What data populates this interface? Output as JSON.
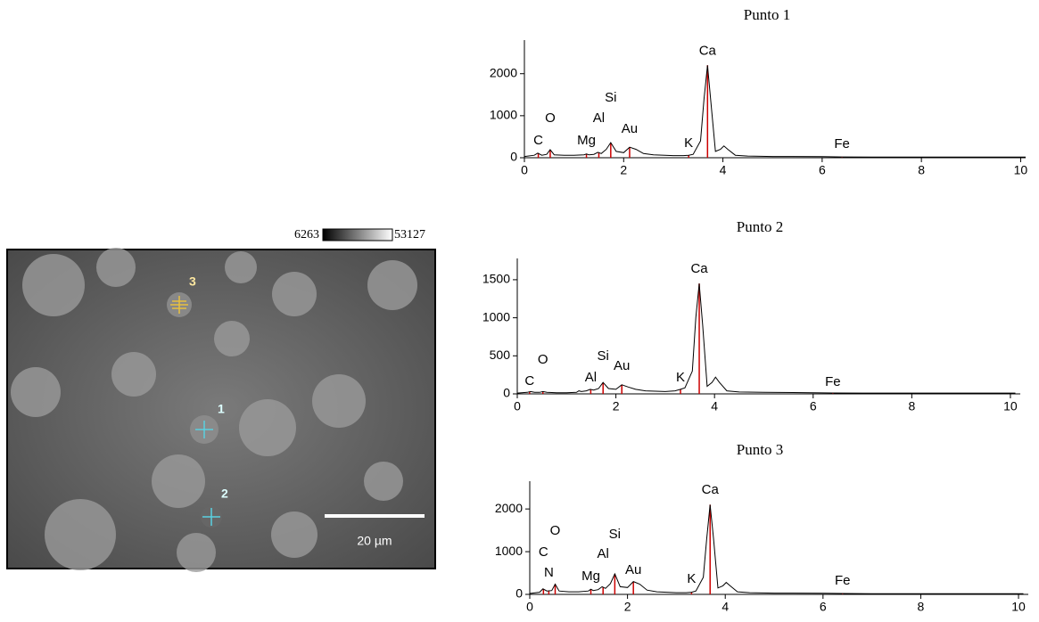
{
  "image": {
    "colorbar_min": 6263,
    "colorbar_max": 53127,
    "points": [
      "1",
      "2",
      "3"
    ],
    "scale_bar": "20 µm"
  },
  "chart_data": [
    {
      "type": "line",
      "title": "Punto 1",
      "color": "#000000",
      "marker_color": "#cc0000",
      "x": [
        0,
        0.2,
        0.27,
        0.35,
        0.45,
        0.52,
        0.6,
        0.8,
        1.0,
        1.2,
        1.25,
        1.3,
        1.4,
        1.48,
        1.55,
        1.65,
        1.74,
        1.85,
        2.0,
        2.12,
        2.25,
        2.4,
        2.6,
        3.0,
        3.2,
        3.31,
        3.4,
        3.55,
        3.62,
        3.69,
        3.76,
        3.85,
        3.95,
        4.02,
        4.1,
        4.25,
        4.5,
        5,
        6,
        6.4,
        7,
        8,
        9,
        10,
        10.1
      ],
      "values": [
        30,
        60,
        110,
        60,
        80,
        190,
        70,
        60,
        60,
        70,
        90,
        70,
        80,
        130,
        100,
        200,
        360,
        150,
        120,
        250,
        200,
        100,
        70,
        50,
        50,
        60,
        80,
        400,
        1400,
        2200,
        1300,
        150,
        200,
        280,
        200,
        60,
        40,
        30,
        25,
        20,
        15,
        15,
        15,
        15,
        15
      ],
      "xlim": [
        0,
        10.1
      ],
      "xticks": [
        0,
        2,
        4,
        6,
        8,
        10
      ],
      "ylim": [
        0,
        2800
      ],
      "yticks": [
        0,
        1000,
        2000
      ],
      "annotations": [
        {
          "text": "C",
          "x": 0.28,
          "y": 400
        },
        {
          "text": "O",
          "x": 0.52,
          "y": 935
        },
        {
          "text": "Mg",
          "x": 1.25,
          "y": 400
        },
        {
          "text": "Al",
          "x": 1.5,
          "y": 935
        },
        {
          "text": "Si",
          "x": 1.74,
          "y": 1425
        },
        {
          "text": "Au",
          "x": 2.12,
          "y": 680
        },
        {
          "text": "K",
          "x": 3.31,
          "y": 340
        },
        {
          "text": "Ca",
          "x": 3.69,
          "y": 2530
        },
        {
          "text": "Fe",
          "x": 6.4,
          "y": 320
        }
      ]
    },
    {
      "type": "line",
      "title": "Punto 2",
      "color": "#000000",
      "marker_color": "#cc0000",
      "x": [
        0,
        0.2,
        0.27,
        0.35,
        0.45,
        0.52,
        0.6,
        0.8,
        1.0,
        1.2,
        1.25,
        1.3,
        1.4,
        1.48,
        1.55,
        1.65,
        1.74,
        1.85,
        2.0,
        2.12,
        2.25,
        2.4,
        2.6,
        3.0,
        3.2,
        3.31,
        3.4,
        3.55,
        3.62,
        3.69,
        3.76,
        3.85,
        3.95,
        4.02,
        4.1,
        4.25,
        4.5,
        5,
        6,
        6.4,
        7,
        8,
        9,
        10,
        10.1
      ],
      "values": [
        10,
        20,
        30,
        20,
        20,
        30,
        20,
        15,
        15,
        20,
        40,
        30,
        40,
        60,
        50,
        70,
        150,
        70,
        60,
        120,
        90,
        60,
        40,
        30,
        40,
        60,
        80,
        300,
        1000,
        1450,
        900,
        100,
        150,
        220,
        150,
        40,
        25,
        20,
        15,
        12,
        10,
        10,
        10,
        10,
        10
      ],
      "xlim": [
        0,
        10.2
      ],
      "xticks": [
        0,
        2,
        4,
        6,
        8,
        10
      ],
      "ylim": [
        0,
        1780
      ],
      "yticks": [
        0,
        500,
        1000,
        1500
      ],
      "annotations": [
        {
          "text": "C",
          "x": 0.25,
          "y": 165
        },
        {
          "text": "O",
          "x": 0.52,
          "y": 445
        },
        {
          "text": "Al",
          "x": 1.49,
          "y": 210
        },
        {
          "text": "Si",
          "x": 1.74,
          "y": 490
        },
        {
          "text": "Au",
          "x": 2.12,
          "y": 365
        },
        {
          "text": "K",
          "x": 3.31,
          "y": 210
        },
        {
          "text": "Ca",
          "x": 3.69,
          "y": 1640
        },
        {
          "text": "Fe",
          "x": 6.4,
          "y": 150
        }
      ]
    },
    {
      "type": "line",
      "title": "Punto 3",
      "color": "#000000",
      "marker_color": "#cc0000",
      "x": [
        0,
        0.2,
        0.27,
        0.35,
        0.45,
        0.52,
        0.6,
        0.8,
        1.0,
        1.2,
        1.25,
        1.3,
        1.4,
        1.48,
        1.55,
        1.65,
        1.74,
        1.85,
        2.0,
        2.12,
        2.25,
        2.4,
        2.6,
        3.0,
        3.2,
        3.31,
        3.4,
        3.55,
        3.62,
        3.69,
        3.76,
        3.85,
        3.95,
        4.02,
        4.1,
        4.25,
        4.5,
        5,
        6,
        6.4,
        7,
        8,
        9,
        10,
        10.1
      ],
      "values": [
        20,
        50,
        130,
        80,
        90,
        240,
        80,
        60,
        60,
        80,
        120,
        90,
        110,
        180,
        140,
        250,
        480,
        180,
        160,
        300,
        240,
        100,
        60,
        40,
        40,
        50,
        80,
        400,
        1300,
        2100,
        1300,
        150,
        200,
        280,
        200,
        60,
        40,
        30,
        25,
        20,
        15,
        15,
        15,
        15,
        15
      ],
      "xlim": [
        0,
        10.2
      ],
      "xticks": [
        0,
        2,
        4,
        6,
        8,
        10
      ],
      "ylim": [
        0,
        2650
      ],
      "yticks": [
        0,
        1000,
        2000
      ],
      "annotations": [
        {
          "text": "C",
          "x": 0.28,
          "y": 980
        },
        {
          "text": "O",
          "x": 0.52,
          "y": 1480
        },
        {
          "text": "N",
          "x": 0.39,
          "y": 500
        },
        {
          "text": "Mg",
          "x": 1.25,
          "y": 420
        },
        {
          "text": "Al",
          "x": 1.5,
          "y": 940
        },
        {
          "text": "Si",
          "x": 1.74,
          "y": 1400
        },
        {
          "text": "Au",
          "x": 2.12,
          "y": 560
        },
        {
          "text": "K",
          "x": 3.31,
          "y": 350
        },
        {
          "text": "Ca",
          "x": 3.69,
          "y": 2440
        },
        {
          "text": "Fe",
          "x": 6.4,
          "y": 310
        }
      ]
    }
  ]
}
